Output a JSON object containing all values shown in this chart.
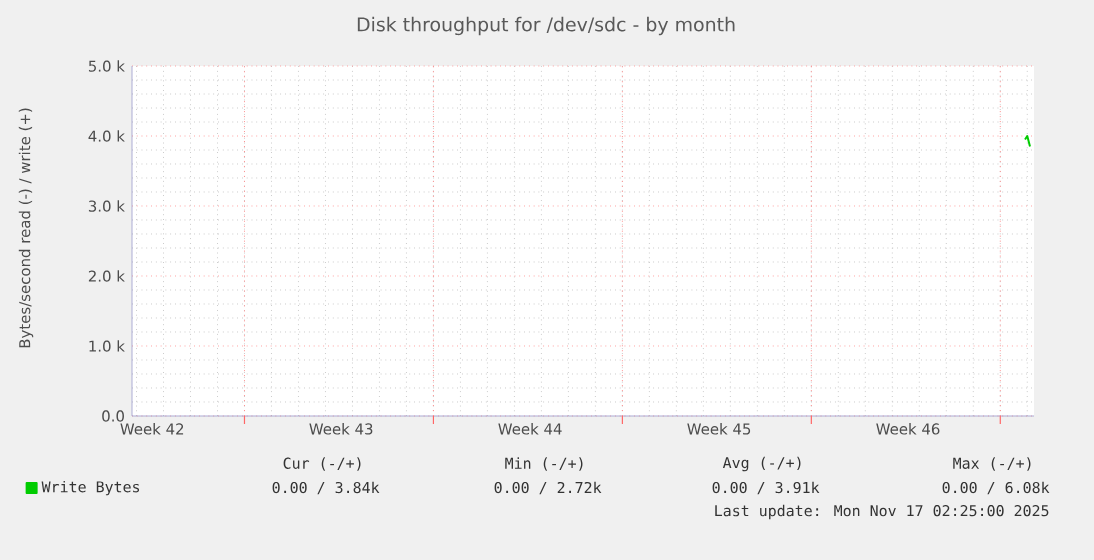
{
  "chart_data": {
    "type": "line",
    "title": "Disk throughput for /dev/sdc - by month",
    "ylabel": "Bytes/second read (-) / write (+)",
    "x": [
      "2025-11-16T22:00",
      "2025-11-17T00:00",
      "2025-11-17T02:25"
    ],
    "series": [
      {
        "name": "Write Bytes",
        "color": "#00cc00",
        "values": [
          3950,
          4000,
          3850
        ]
      }
    ],
    "xlim": [
      "2025-10-14T20:00",
      "2025-11-17T06:00"
    ],
    "xticks": [
      {
        "value": "2025-10-15T14:00",
        "label": "Week 42"
      },
      {
        "value": "2025-10-22T14:00",
        "label": "Week 43"
      },
      {
        "value": "2025-10-29T14:00",
        "label": "Week 44"
      },
      {
        "value": "2025-11-05T14:00",
        "label": "Week 45"
      },
      {
        "value": "2025-11-12T14:00",
        "label": "Week 46"
      },
      {
        "value": "2025-10-19",
        "label": null
      },
      {
        "value": "2025-10-26",
        "label": null
      },
      {
        "value": "2025-11-02",
        "label": null
      },
      {
        "value": "2025-11-09",
        "label": null
      },
      {
        "value": "2025-11-16",
        "label": null
      }
    ],
    "ylim": [
      0,
      5000
    ],
    "yticks": [
      {
        "value": 0,
        "label": "0.0"
      },
      {
        "value": 1000,
        "label": "1.0 k"
      },
      {
        "value": 2000,
        "label": "2.0 k"
      },
      {
        "value": 3000,
        "label": "3.0 k"
      },
      {
        "value": 4000,
        "label": "4.0 k"
      },
      {
        "value": 5000,
        "label": "5.0 k"
      }
    ],
    "grid": true,
    "legend": "bottom left",
    "annotations": [
      "Cur (-/+)",
      "Min (-/+)",
      "Avg (-/+)",
      "Max (-/+)",
      "0.00 / 3.84k",
      "0.00 / 2.72k",
      "0.00 / 3.91k",
      "0.00 / 6.08k",
      "Last update: Mon Nov 17 02:25:00 2025"
    ]
  }
}
